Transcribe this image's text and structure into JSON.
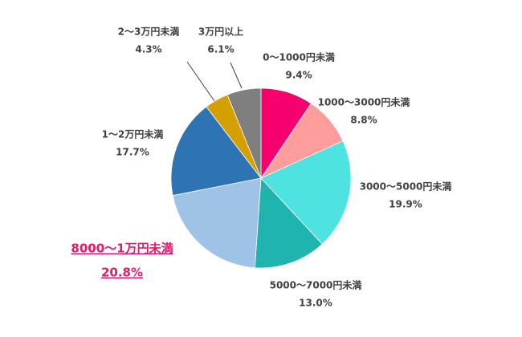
{
  "chart_data": {
    "type": "pie",
    "categories": [
      "0～1000円未満",
      "1000～3000円未満",
      "3000～5000円未満",
      "5000～7000円未満",
      "8000～1万円未満",
      "1～2万円未満",
      "2～3万円未満",
      "3万円以上"
    ],
    "values": [
      9.4,
      8.8,
      19.9,
      13.0,
      20.8,
      17.7,
      4.3,
      6.1
    ],
    "value_labels": [
      "9.4%",
      "8.8%",
      "19.9%",
      "13.0%",
      "20.8%",
      "17.7%",
      "4.3%",
      "6.1%"
    ],
    "colors": [
      "#f5006c",
      "#ff9c9c",
      "#4ee3e0",
      "#1fb4ae",
      "#9fc3e6",
      "#2e74b5",
      "#d4a000",
      "#7f7f7f"
    ]
  }
}
